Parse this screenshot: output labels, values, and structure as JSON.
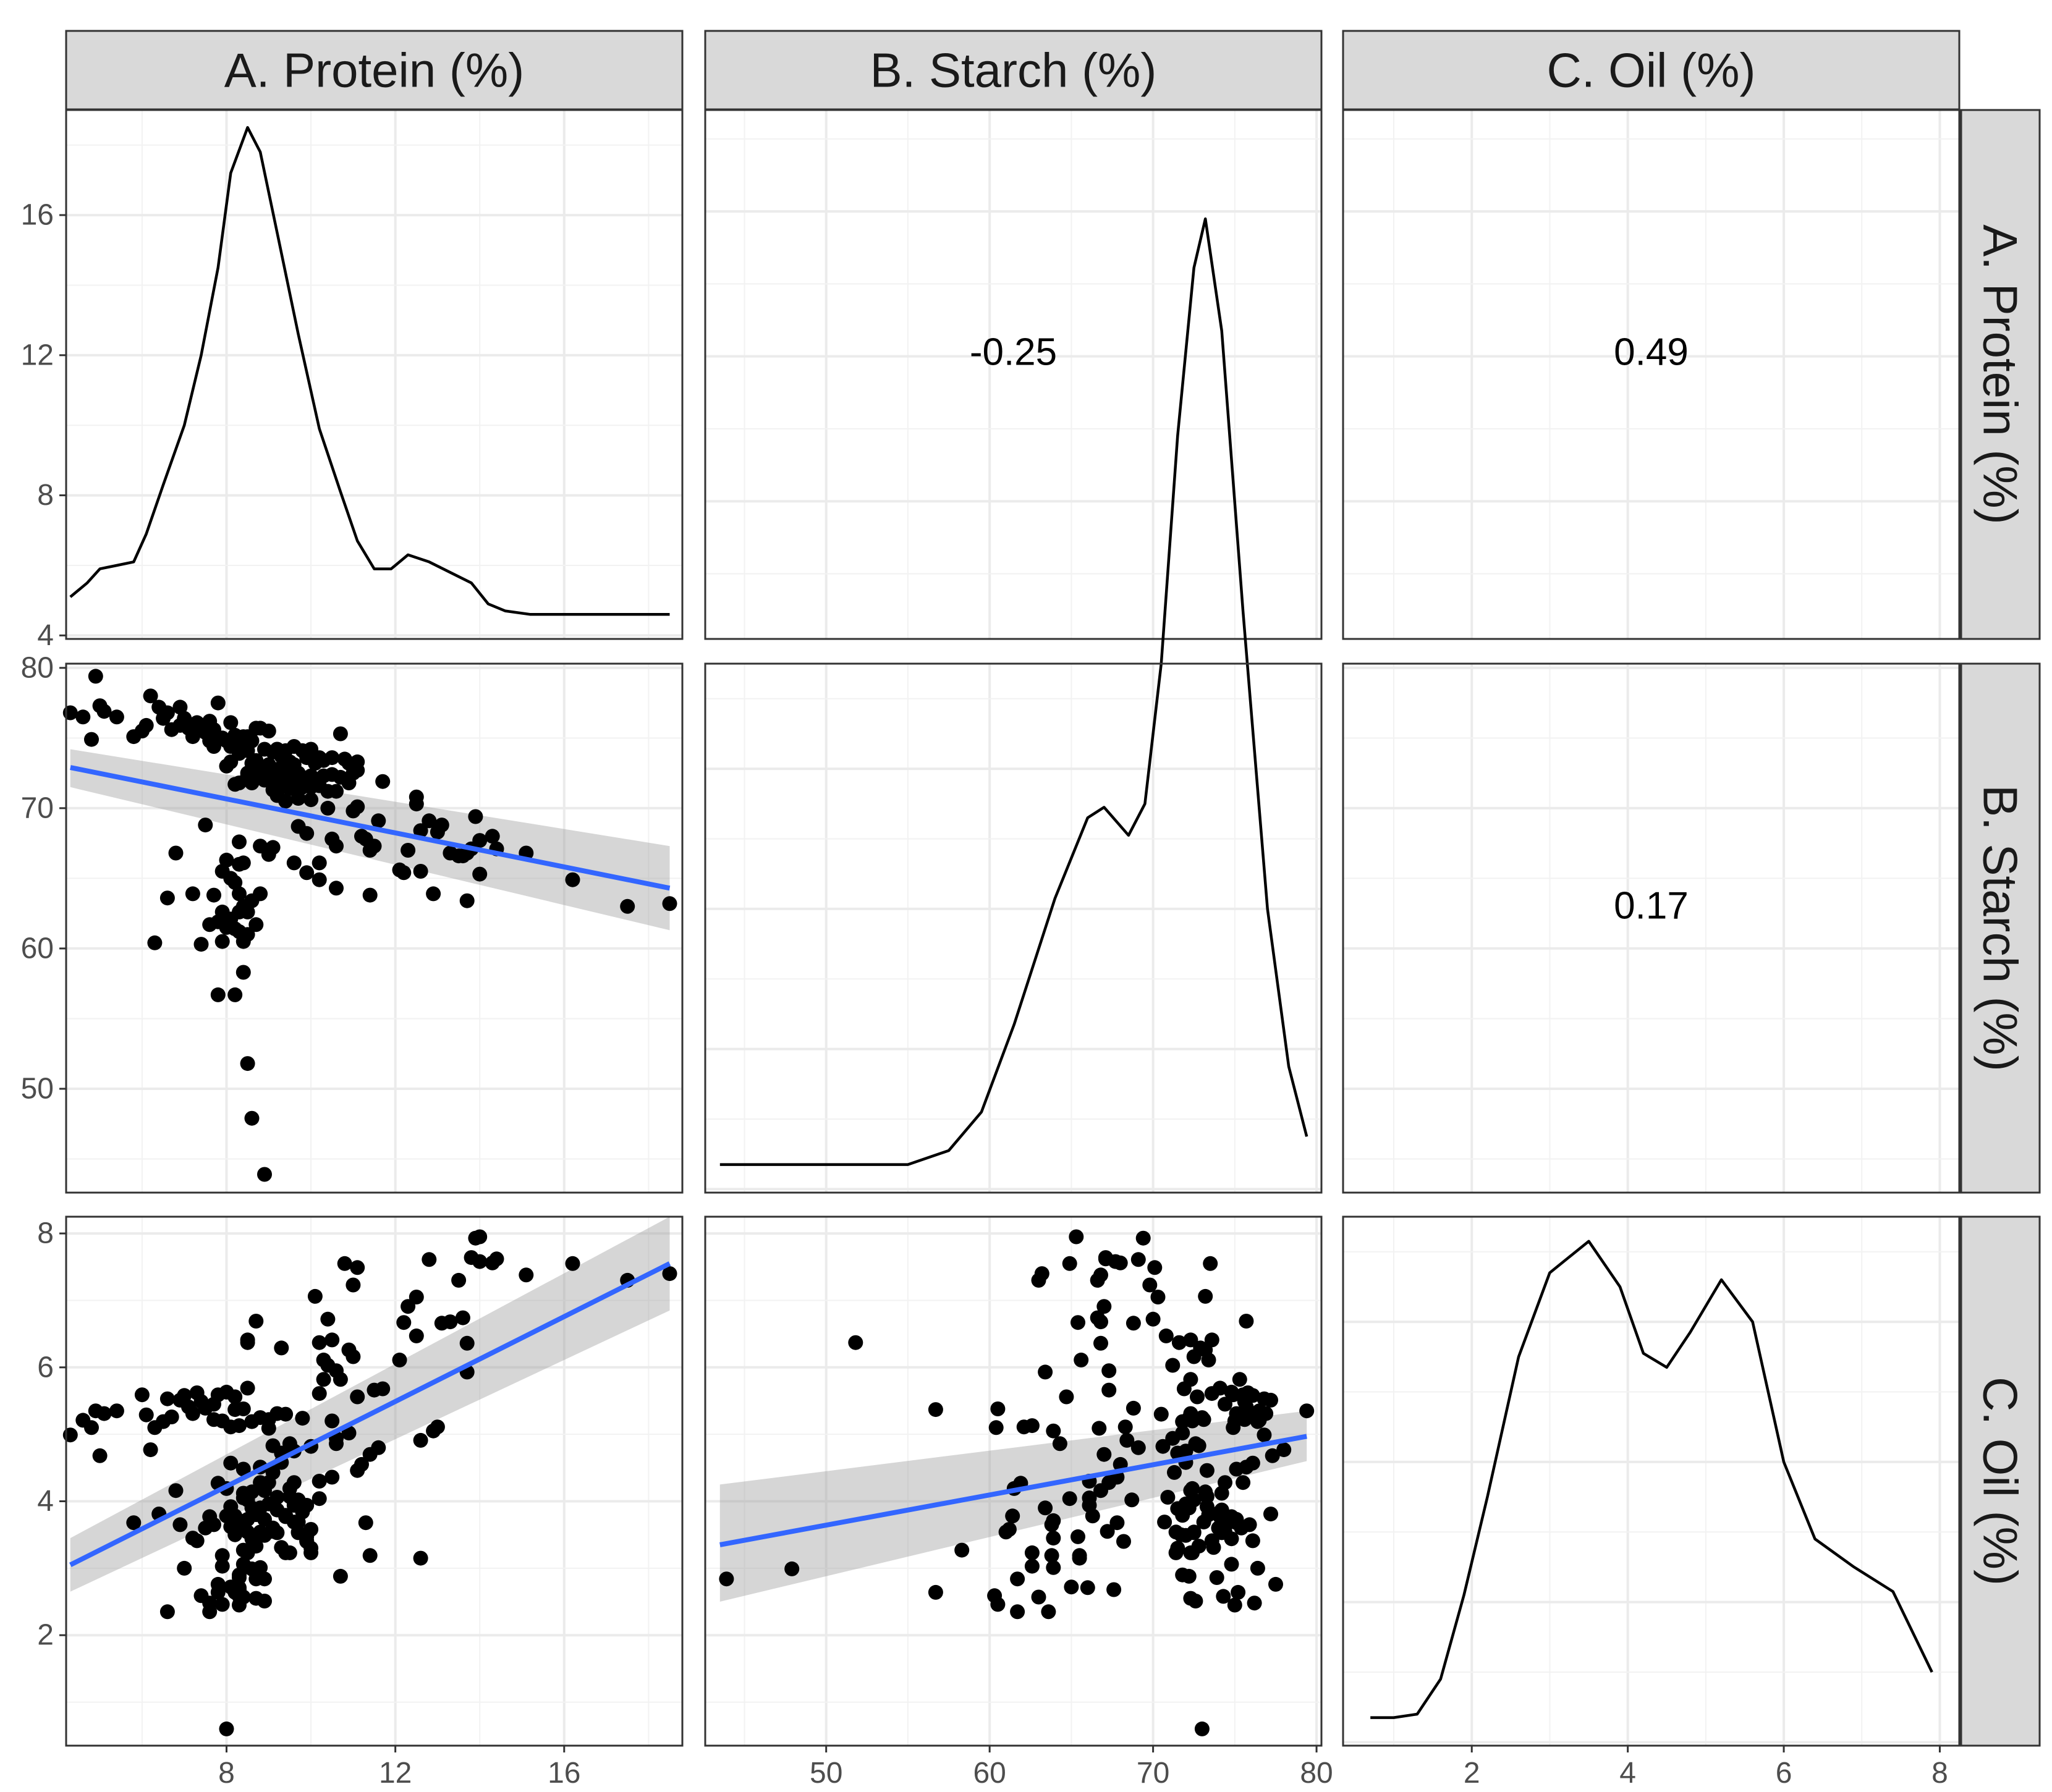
{
  "chart_data": {
    "type": "scatter",
    "title": "",
    "variables": [
      {
        "key": "protein",
        "label": "A. Protein (%)",
        "range": [
          4.2,
          18.8
        ],
        "ticks": [
          4,
          8,
          12,
          16
        ]
      },
      {
        "key": "starch",
        "label": "B. Starch (%)",
        "range": [
          42.6,
          80.3
        ],
        "ticks": [
          50,
          60,
          70,
          80
        ]
      },
      {
        "key": "oil",
        "label": "C. Oil (%)",
        "range": [
          0.35,
          8.25
        ],
        "ticks": [
          2,
          4,
          6,
          8
        ]
      }
    ],
    "diag_axis_ticks": [
      4,
      8,
      12,
      16
    ],
    "diag_axis_range": [
      3.9,
      19.0
    ],
    "densities": {
      "protein": [
        [
          4.3,
          5.1
        ],
        [
          4.7,
          5.5
        ],
        [
          5.0,
          5.9
        ],
        [
          5.4,
          6.0
        ],
        [
          5.8,
          6.1
        ],
        [
          6.1,
          6.9
        ],
        [
          6.5,
          8.3
        ],
        [
          7.0,
          10.0
        ],
        [
          7.4,
          12.0
        ],
        [
          7.8,
          14.5
        ],
        [
          8.1,
          17.2
        ],
        [
          8.5,
          18.5
        ],
        [
          8.8,
          17.8
        ],
        [
          9.2,
          15.5
        ],
        [
          9.7,
          12.6
        ],
        [
          10.2,
          9.9
        ],
        [
          10.7,
          8.1
        ],
        [
          11.1,
          6.7
        ],
        [
          11.5,
          5.9
        ],
        [
          11.9,
          5.9
        ],
        [
          12.3,
          6.3
        ],
        [
          12.8,
          6.1
        ],
        [
          13.3,
          5.8
        ],
        [
          13.8,
          5.5
        ],
        [
          14.2,
          4.9
        ],
        [
          14.6,
          4.7
        ],
        [
          15.2,
          4.6
        ],
        [
          16.0,
          4.6
        ],
        [
          17.0,
          4.6
        ],
        [
          18.0,
          4.6
        ],
        [
          18.5,
          4.6
        ]
      ],
      "starch": [
        [
          43.5,
          4.7
        ],
        [
          48.0,
          4.7
        ],
        [
          52.0,
          4.7
        ],
        [
          55.0,
          4.7
        ],
        [
          57.5,
          5.1
        ],
        [
          59.5,
          6.2
        ],
        [
          61.5,
          8.7
        ],
        [
          64.0,
          12.3
        ],
        [
          66.0,
          14.6
        ],
        [
          67.0,
          14.9
        ],
        [
          68.5,
          14.1
        ],
        [
          69.5,
          15.0
        ],
        [
          70.5,
          19.0
        ],
        [
          71.5,
          25.5
        ],
        [
          72.5,
          30.3
        ],
        [
          73.2,
          31.7
        ],
        [
          74.2,
          28.5
        ],
        [
          75.5,
          20.5
        ],
        [
          77.0,
          12.0
        ],
        [
          78.3,
          7.5
        ],
        [
          79.4,
          5.5
        ]
      ],
      "oil": [
        [
          0.7,
          4.7
        ],
        [
          1.0,
          4.7
        ],
        [
          1.3,
          4.8
        ],
        [
          1.6,
          5.8
        ],
        [
          1.9,
          8.2
        ],
        [
          2.2,
          11.0
        ],
        [
          2.6,
          15.0
        ],
        [
          3.0,
          17.4
        ],
        [
          3.5,
          18.3
        ],
        [
          3.9,
          17.0
        ],
        [
          4.2,
          15.1
        ],
        [
          4.5,
          14.7
        ],
        [
          4.8,
          15.7
        ],
        [
          5.2,
          17.2
        ],
        [
          5.6,
          16.0
        ],
        [
          6.0,
          12.0
        ],
        [
          6.4,
          9.8
        ],
        [
          6.9,
          9.0
        ],
        [
          7.4,
          8.3
        ],
        [
          7.9,
          6.0
        ]
      ]
    },
    "correlations": [
      {
        "row": "protein",
        "col": "starch",
        "label": "-0.25"
      },
      {
        "row": "protein",
        "col": "oil",
        "label": "0.49"
      },
      {
        "row": "starch",
        "col": "oil",
        "label": "0.17"
      }
    ],
    "fits": [
      {
        "x": "protein",
        "y": "starch",
        "x0": 4.3,
        "y0": 72.9,
        "x1": 18.5,
        "y1": 64.3,
        "ci_lo0": 71.5,
        "ci_hi0": 74.2,
        "ci_lo1": 61.3,
        "ci_hi1": 67.3
      },
      {
        "x": "protein",
        "y": "oil",
        "x0": 4.3,
        "y0": 3.05,
        "x1": 18.5,
        "y1": 7.55,
        "ci_lo0": 2.65,
        "ci_hi0": 3.45,
        "ci_lo1": 6.85,
        "ci_hi1": 8.25
      },
      {
        "x": "starch",
        "y": "oil",
        "x0": 43.5,
        "y0": 3.35,
        "x1": 79.4,
        "y1": 4.97,
        "ci_lo0": 2.5,
        "ci_hi0": 4.25,
        "ci_lo1": 4.6,
        "ci_hi1": 5.35
      }
    ],
    "samples": [
      [
        4.3,
        76.8,
        4.99
      ],
      [
        4.6,
        76.5,
        5.21
      ],
      [
        4.8,
        74.9,
        5.1
      ],
      [
        4.9,
        79.4,
        5.35
      ],
      [
        5.0,
        77.3,
        4.68
      ],
      [
        5.1,
        76.9,
        5.31
      ],
      [
        5.4,
        76.5,
        5.35
      ],
      [
        5.8,
        75.1,
        3.68
      ],
      [
        6.0,
        75.5,
        5.59
      ],
      [
        6.1,
        75.9,
        5.29
      ],
      [
        6.2,
        78.0,
        4.77
      ],
      [
        6.3,
        60.4,
        5.1
      ],
      [
        6.4,
        77.2,
        3.81
      ],
      [
        6.5,
        76.4,
        5.19
      ],
      [
        6.6,
        76.8,
        5.53
      ],
      [
        6.6,
        63.6,
        2.35
      ],
      [
        6.7,
        75.6,
        5.26
      ],
      [
        6.8,
        66.8,
        4.16
      ],
      [
        6.9,
        77.2,
        5.51
      ],
      [
        6.9,
        75.9,
        3.65
      ],
      [
        7.0,
        76.4,
        3.0
      ],
      [
        7.0,
        76.1,
        5.58
      ],
      [
        7.1,
        75.7,
        5.41
      ],
      [
        7.2,
        75.1,
        5.31
      ],
      [
        7.2,
        63.9,
        3.45
      ],
      [
        7.3,
        76.1,
        3.41
      ],
      [
        7.3,
        75.8,
        5.62
      ],
      [
        7.4,
        60.3,
        2.59
      ],
      [
        7.4,
        75.6,
        5.49
      ],
      [
        7.5,
        75.4,
        3.6
      ],
      [
        7.5,
        68.8,
        5.39
      ],
      [
        7.6,
        74.8,
        3.77
      ],
      [
        7.6,
        76.2,
        2.48
      ],
      [
        7.6,
        61.7,
        2.35
      ],
      [
        7.7,
        75.6,
        5.22
      ],
      [
        7.7,
        63.8,
        3.65
      ],
      [
        7.7,
        74.4,
        5.45
      ],
      [
        7.8,
        56.7,
        2.64
      ],
      [
        7.8,
        61.9,
        4.27
      ],
      [
        7.8,
        74.9,
        5.59
      ],
      [
        7.8,
        77.5,
        2.76
      ],
      [
        7.9,
        60.5,
        2.46
      ],
      [
        7.9,
        65.5,
        3.19
      ],
      [
        7.9,
        75.0,
        5.2
      ],
      [
        7.9,
        62.6,
        3.03
      ],
      [
        8.0,
        73.0,
        0.6
      ],
      [
        8.0,
        61.5,
        4.19
      ],
      [
        8.0,
        66.3,
        3.78
      ],
      [
        8.0,
        74.8,
        5.63
      ],
      [
        8.1,
        62.1,
        5.11
      ],
      [
        8.1,
        74.4,
        3.62
      ],
      [
        8.1,
        65.0,
        2.72
      ],
      [
        8.1,
        76.1,
        4.57
      ],
      [
        8.1,
        73.3,
        3.92
      ],
      [
        8.2,
        75.2,
        2.64
      ],
      [
        8.2,
        61.4,
        3.78
      ],
      [
        8.2,
        56.7,
        5.37
      ],
      [
        8.2,
        71.7,
        3.5
      ],
      [
        8.2,
        64.7,
        5.56
      ],
      [
        8.2,
        74.4,
        3.54
      ],
      [
        8.3,
        67.6,
        2.68
      ],
      [
        8.3,
        61.2,
        3.58
      ],
      [
        8.3,
        75.0,
        2.45
      ],
      [
        8.3,
        62.6,
        5.13
      ],
      [
        8.3,
        74.3,
        2.58
      ],
      [
        8.3,
        63.9,
        3.71
      ],
      [
        8.3,
        73.9,
        2.86
      ],
      [
        8.3,
        66.0,
        2.71
      ],
      [
        8.3,
        71.8,
        2.9
      ],
      [
        8.4,
        60.5,
        5.38
      ],
      [
        8.4,
        74.8,
        3.06
      ],
      [
        8.4,
        58.3,
        3.27
      ],
      [
        8.4,
        75.1,
        4.48
      ],
      [
        8.4,
        66.1,
        4.05
      ],
      [
        8.4,
        74.2,
        4.12
      ],
      [
        8.4,
        63.0,
        2.57
      ],
      [
        8.5,
        51.8,
        6.37
      ],
      [
        8.5,
        72.3,
        6.41
      ],
      [
        8.5,
        61.0,
        3.54
      ],
      [
        8.5,
        75.1,
        3.73
      ],
      [
        8.5,
        72.5,
        4.02
      ],
      [
        8.5,
        74.1,
        5.69
      ],
      [
        8.5,
        62.6,
        3.23
      ],
      [
        8.6,
        73.2,
        4.14
      ],
      [
        8.6,
        47.9,
        2.99
      ],
      [
        8.6,
        74.8,
        3.44
      ],
      [
        8.6,
        71.8,
        5.19
      ],
      [
        8.6,
        63.4,
        3.9
      ],
      [
        8.7,
        72.8,
        3.33
      ],
      [
        8.7,
        75.7,
        6.69
      ],
      [
        8.7,
        72.3,
        2.55
      ],
      [
        8.7,
        73.4,
        3.8
      ],
      [
        8.7,
        61.7,
        2.84
      ],
      [
        8.8,
        75.7,
        4.51
      ],
      [
        8.8,
        72.2,
        3.9
      ],
      [
        8.8,
        73.0,
        5.25
      ],
      [
        8.8,
        67.3,
        4.28
      ],
      [
        8.8,
        72.5,
        3.54
      ],
      [
        8.8,
        63.9,
        3.01
      ],
      [
        8.9,
        72.0,
        3.49
      ],
      [
        8.9,
        43.9,
        2.84
      ],
      [
        8.9,
        72.6,
        2.51
      ],
      [
        8.9,
        74.2,
        3.73
      ],
      [
        8.9,
        72.3,
        4.16
      ],
      [
        9.0,
        66.7,
        5.09
      ],
      [
        9.0,
        72.0,
        3.96
      ],
      [
        9.0,
        73.1,
        5.22
      ],
      [
        9.0,
        75.5,
        4.28
      ],
      [
        9.1,
        72.8,
        4.83
      ],
      [
        9.1,
        71.3,
        4.43
      ],
      [
        9.1,
        74.0,
        3.6
      ],
      [
        9.1,
        67.2,
        3.55
      ],
      [
        9.2,
        72.3,
        5.31
      ],
      [
        9.2,
        74.2,
        3.87
      ],
      [
        9.2,
        70.9,
        4.06
      ],
      [
        9.2,
        74.2,
        3.53
      ],
      [
        9.3,
        72.9,
        6.29
      ],
      [
        9.3,
        72.0,
        4.58
      ],
      [
        9.3,
        71.5,
        4.72
      ],
      [
        9.3,
        73.7,
        3.31
      ],
      [
        9.4,
        72.4,
        3.23
      ],
      [
        9.4,
        71.8,
        3.79
      ],
      [
        9.4,
        74.1,
        3.77
      ],
      [
        9.4,
        70.5,
        5.3
      ],
      [
        9.5,
        72.4,
        4.19
      ],
      [
        9.5,
        73.3,
        4.07
      ],
      [
        9.5,
        72.6,
        4.86
      ],
      [
        9.5,
        71.4,
        3.23
      ],
      [
        9.6,
        72.0,
        4.75
      ],
      [
        9.6,
        66.1,
        3.94
      ],
      [
        9.6,
        74.4,
        4.28
      ],
      [
        9.6,
        73.1,
        3.69
      ],
      [
        9.7,
        72.5,
        3.53
      ],
      [
        9.7,
        68.7,
        4.02
      ],
      [
        9.7,
        70.7,
        3.69
      ],
      [
        9.7,
        71.4,
        3.54
      ],
      [
        9.8,
        72.2,
        5.24
      ],
      [
        9.8,
        74.1,
        3.84
      ],
      [
        9.8,
        71.5,
        3.89
      ],
      [
        9.9,
        73.6,
        3.41
      ],
      [
        9.9,
        68.2,
        3.4
      ],
      [
        9.9,
        72.0,
        3.94
      ],
      [
        9.9,
        65.4,
        3.47
      ],
      [
        10.0,
        74.2,
        3.58
      ],
      [
        10.0,
        70.6,
        4.82
      ],
      [
        10.0,
        71.5,
        3.3
      ],
      [
        10.0,
        72.3,
        3.23
      ],
      [
        10.1,
        73.2,
        7.06
      ],
      [
        10.2,
        73.6,
        5.61
      ],
      [
        10.2,
        71.6,
        6.37
      ],
      [
        10.2,
        66.1,
        4.3
      ],
      [
        10.2,
        64.9,
        4.04
      ],
      [
        10.3,
        72.3,
        5.82
      ],
      [
        10.3,
        73.4,
        6.11
      ],
      [
        10.4,
        71.2,
        6.03
      ],
      [
        10.4,
        70.0,
        6.72
      ],
      [
        10.5,
        72.4,
        5.2
      ],
      [
        10.5,
        73.6,
        6.41
      ],
      [
        10.5,
        67.8,
        4.36
      ],
      [
        10.6,
        71.2,
        4.94
      ],
      [
        10.6,
        67.3,
        5.95
      ],
      [
        10.6,
        64.3,
        4.86
      ],
      [
        10.7,
        75.3,
        5.82
      ],
      [
        10.7,
        72.2,
        2.88
      ],
      [
        10.8,
        73.5,
        7.55
      ],
      [
        10.9,
        71.8,
        5.02
      ],
      [
        10.9,
        73.2,
        6.26
      ],
      [
        11.0,
        69.8,
        7.23
      ],
      [
        11.0,
        72.5,
        6.16
      ],
      [
        11.1,
        73.3,
        4.46
      ],
      [
        11.1,
        70.1,
        7.49
      ],
      [
        11.1,
        72.7,
        5.56
      ],
      [
        11.2,
        68.0,
        4.55
      ],
      [
        11.3,
        67.8,
        3.68
      ],
      [
        11.4,
        63.8,
        3.19
      ],
      [
        11.4,
        67.0,
        4.7
      ],
      [
        11.5,
        67.3,
        5.66
      ],
      [
        11.6,
        69.1,
        4.8
      ],
      [
        11.7,
        71.9,
        5.68
      ],
      [
        12.1,
        65.6,
        6.11
      ],
      [
        12.2,
        65.4,
        6.67
      ],
      [
        12.3,
        67.0,
        6.91
      ],
      [
        12.5,
        70.8,
        6.47
      ],
      [
        12.5,
        70.3,
        7.05
      ],
      [
        12.6,
        65.5,
        3.15
      ],
      [
        12.6,
        68.4,
        4.91
      ],
      [
        12.8,
        69.1,
        7.61
      ],
      [
        12.9,
        63.9,
        5.05
      ],
      [
        13.0,
        68.3,
        5.11
      ],
      [
        13.1,
        68.8,
        6.66
      ],
      [
        13.3,
        66.8,
        6.68
      ],
      [
        13.5,
        66.6,
        7.3
      ],
      [
        13.6,
        66.6,
        6.74
      ],
      [
        13.7,
        66.8,
        6.36
      ],
      [
        13.7,
        63.4,
        5.93
      ],
      [
        13.8,
        67.1,
        7.64
      ],
      [
        13.9,
        69.4,
        7.93
      ],
      [
        14.0,
        65.3,
        7.95
      ],
      [
        14.0,
        67.7,
        7.58
      ],
      [
        14.3,
        68.0,
        7.56
      ],
      [
        14.4,
        67.1,
        7.62
      ],
      [
        15.1,
        66.8,
        7.38
      ],
      [
        16.2,
        64.9,
        7.55
      ],
      [
        17.5,
        63.0,
        7.3
      ],
      [
        18.5,
        63.2,
        7.4
      ]
    ]
  }
}
